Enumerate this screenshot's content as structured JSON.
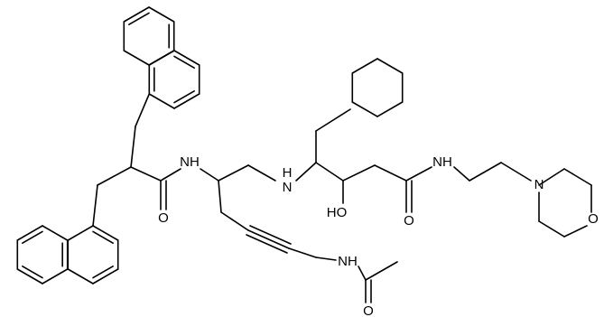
{
  "atoms": {
    "labels": [
      "NH",
      "O",
      "H",
      "N",
      "HO",
      "O",
      "NH",
      "N",
      "O",
      "NH",
      "O"
    ]
  }
}
